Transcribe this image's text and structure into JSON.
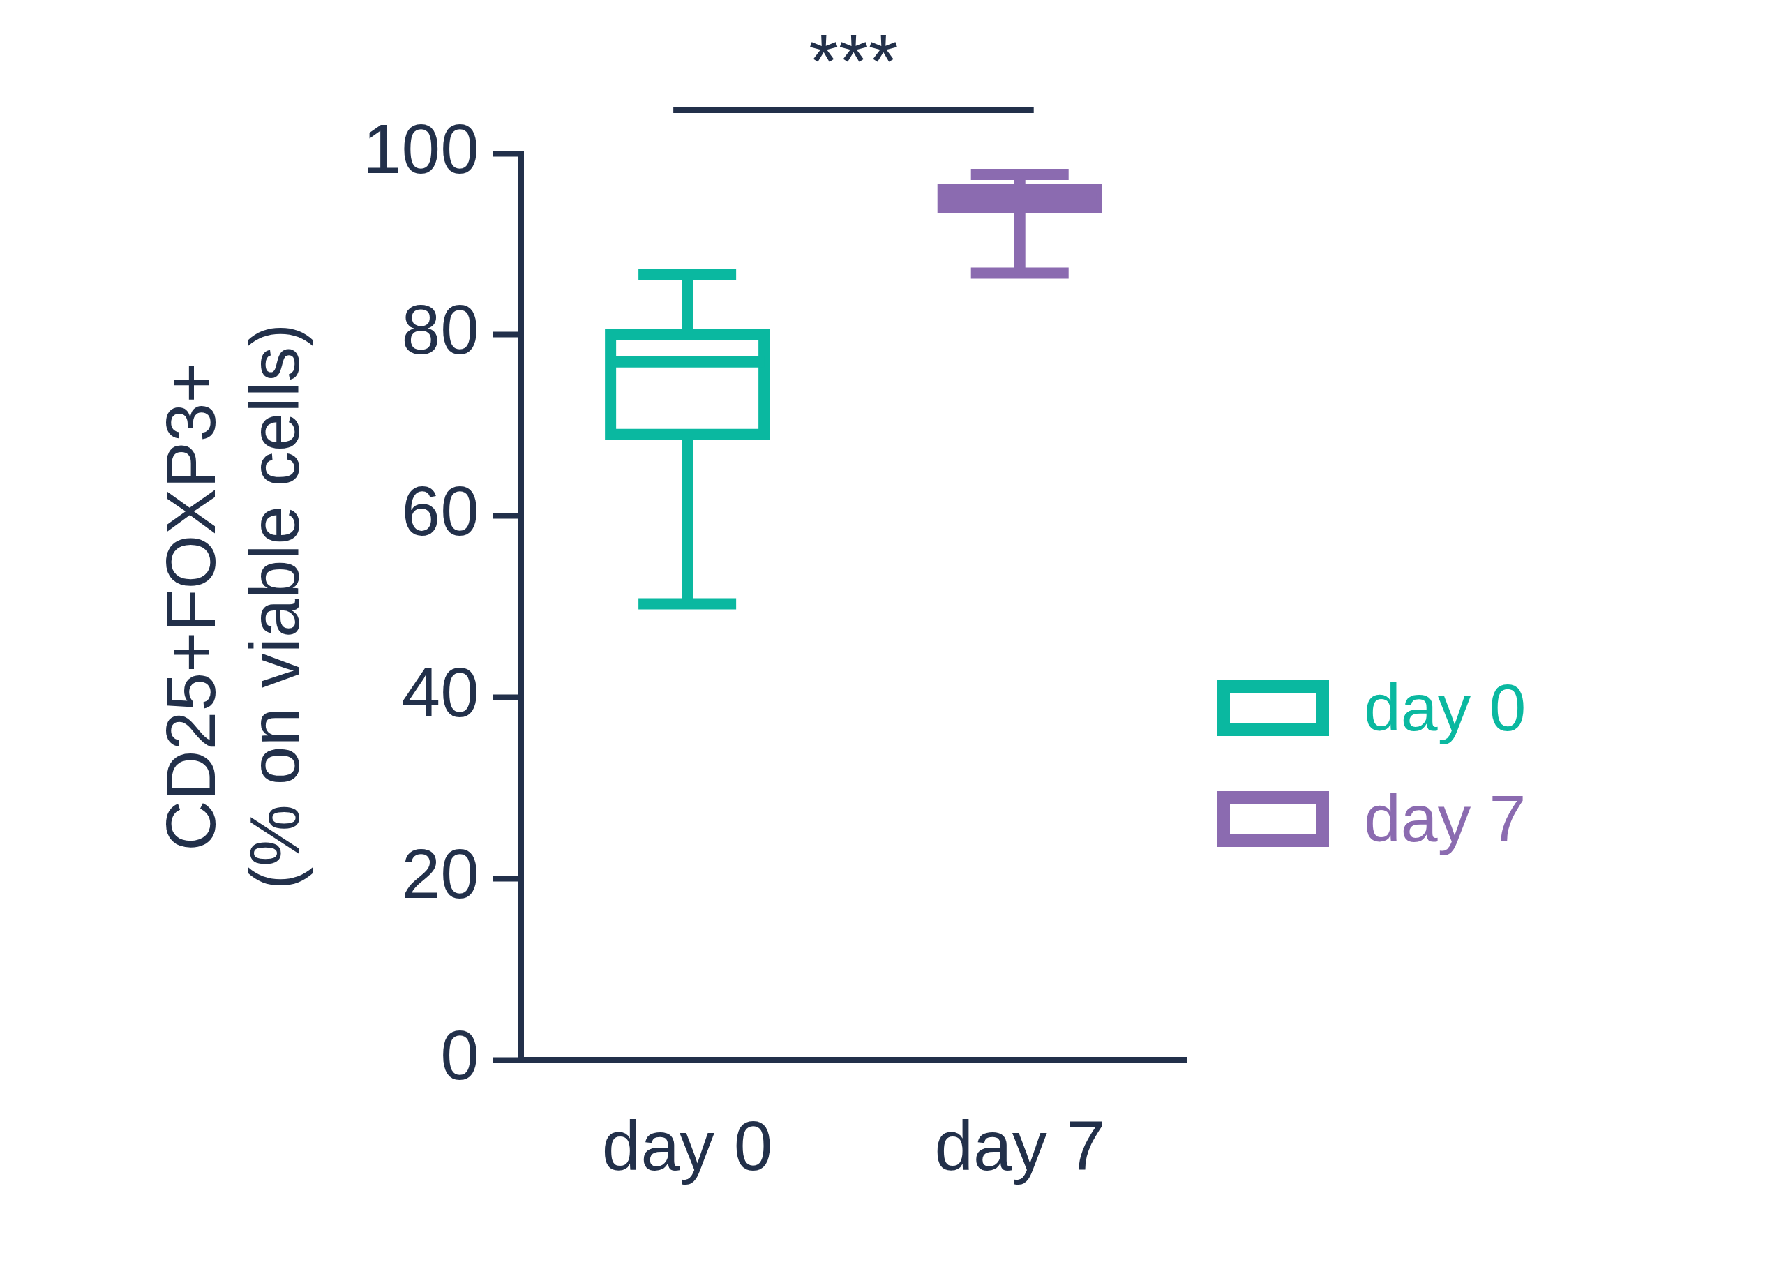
{
  "chart_data": {
    "type": "box",
    "ylabel": "CD25+FOXP3+\n(% on viable cells)",
    "categories": [
      "day 0",
      "day 7"
    ],
    "ylim": [
      0,
      100
    ],
    "yticks": [
      0,
      20,
      40,
      60,
      80,
      100
    ],
    "grid": false,
    "legend": "right",
    "annotations": [
      "***"
    ],
    "series": [
      {
        "name": "day 0",
        "color": "#0ab8a0",
        "boxes": [
          {
            "low": 50.3,
            "q1": 69,
            "median": 77,
            "q3": 80,
            "high": 86.6
          },
          null
        ]
      },
      {
        "name": "day 7",
        "color": "#8b6bb0",
        "boxes": [
          null,
          {
            "low": 86.8,
            "q1": 94,
            "median": 95,
            "q3": 96,
            "high": 97.7
          }
        ]
      }
    ]
  }
}
